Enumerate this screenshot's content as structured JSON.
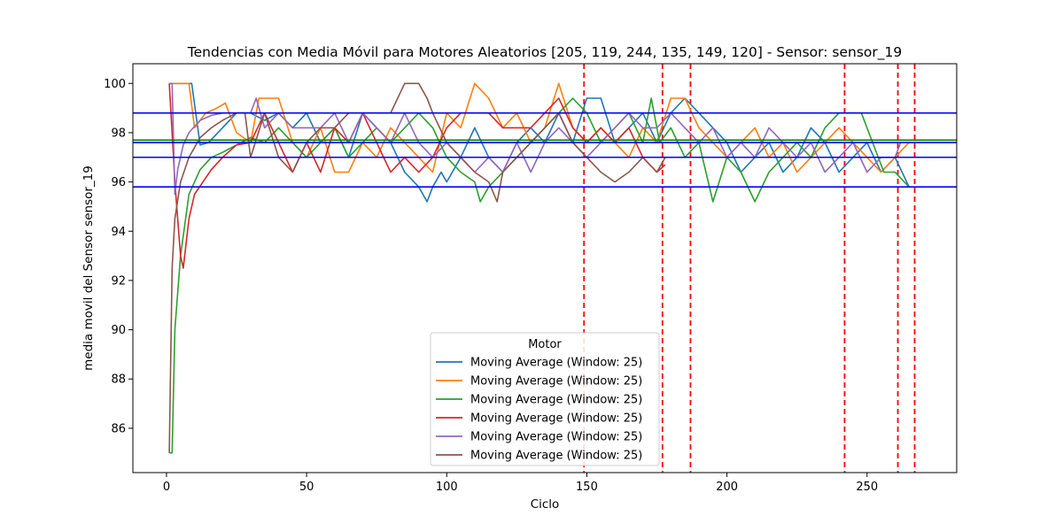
{
  "chart_data": {
    "type": "line",
    "title": "Tendencias con Media Móvil para Motores Aleatorios [205, 119, 244, 135, 149, 120] - Sensor: sensor_19",
    "xlabel": "Ciclo",
    "ylabel": "media movil del Sensor sensor_19",
    "xlim": [
      -12,
      282
    ],
    "ylim": [
      84.2,
      100.8
    ],
    "xticks": [
      0,
      50,
      100,
      150,
      200,
      250
    ],
    "yticks": [
      86,
      88,
      90,
      92,
      94,
      96,
      98,
      100
    ],
    "grid": false,
    "legend": {
      "title": "Motor",
      "placement": "lower-center",
      "entries": [
        "Moving Average (Window: 25)",
        "Moving Average (Window: 25)",
        "Moving Average (Window: 25)",
        "Moving Average (Window: 25)",
        "Moving Average (Window: 25)",
        "Moving Average (Window: 25)"
      ]
    },
    "series": [
      {
        "color": "#1f77b4",
        "x": [
          1,
          2,
          5,
          9,
          12,
          15,
          20,
          25,
          30,
          35,
          40,
          45,
          50,
          55,
          60,
          65,
          70,
          75,
          80,
          85,
          90,
          93,
          95,
          98,
          100,
          105,
          110,
          115,
          120,
          125,
          130,
          135,
          140,
          145,
          150,
          155,
          160,
          165,
          170,
          175,
          180,
          185,
          190,
          195,
          200,
          205,
          210,
          215,
          220,
          225,
          230,
          235,
          240,
          245,
          250,
          255,
          260,
          265
        ],
        "y": [
          100,
          100,
          100,
          100,
          97.5,
          97.6,
          98.2,
          98.8,
          98.8,
          98.5,
          98.8,
          98.2,
          98.8,
          97.6,
          98.2,
          97.0,
          98.8,
          98.2,
          97.6,
          96.4,
          95.8,
          95.2,
          95.8,
          96.4,
          96.0,
          97.0,
          98.2,
          97.0,
          96.4,
          97.6,
          98.2,
          97.6,
          98.8,
          97.6,
          99.4,
          99.4,
          97.6,
          98.2,
          98.8,
          97.6,
          98.8,
          99.4,
          98.8,
          98.2,
          97.6,
          96.4,
          97.0,
          97.6,
          96.4,
          97.0,
          98.2,
          97.6,
          96.4,
          97.0,
          97.6,
          96.4,
          97.0,
          95.8
        ]
      },
      {
        "color": "#ff7f0e",
        "x": [
          1,
          3,
          6,
          8,
          10,
          14,
          18,
          21,
          25,
          30,
          33,
          36,
          40,
          45,
          50,
          55,
          60,
          65,
          70,
          75,
          80,
          85,
          90,
          95,
          100,
          105,
          110,
          115,
          120,
          125,
          130,
          135,
          140,
          145,
          150,
          155,
          160,
          165,
          170,
          175,
          180,
          185,
          190,
          195,
          200,
          205,
          210,
          215,
          220,
          225,
          230,
          235,
          240,
          245,
          250,
          255,
          260,
          265
        ],
        "y": [
          100,
          100,
          100,
          100,
          98.2,
          98.8,
          99.0,
          99.2,
          98.0,
          97.6,
          99.4,
          99.4,
          99.4,
          97.6,
          97.0,
          98.2,
          96.4,
          96.4,
          97.6,
          97.0,
          98.2,
          97.6,
          97.0,
          96.4,
          98.8,
          98.2,
          100,
          99.4,
          98.2,
          98.8,
          97.6,
          98.2,
          100,
          98.2,
          97.6,
          98.2,
          97.6,
          97.0,
          98.2,
          97.6,
          99.4,
          99.4,
          98.2,
          97.6,
          97.0,
          97.6,
          98.2,
          97.0,
          97.6,
          96.4,
          97.0,
          97.6,
          98.2,
          97.6,
          97.0,
          96.4,
          97.0,
          97.6
        ]
      },
      {
        "color": "#2ca02c",
        "x": [
          1,
          2,
          3,
          5,
          8,
          12,
          16,
          20,
          25,
          30,
          35,
          40,
          45,
          50,
          55,
          60,
          65,
          70,
          75,
          80,
          85,
          90,
          95,
          100,
          105,
          110,
          112,
          115,
          120,
          125,
          130,
          135,
          140,
          145,
          150,
          155,
          160,
          165,
          170,
          173,
          176,
          180,
          185,
          190,
          195,
          200,
          205,
          210,
          215,
          220,
          225,
          230,
          235,
          240,
          245,
          248,
          252,
          256,
          260,
          265
        ],
        "y": [
          85,
          85,
          90,
          93,
          95.5,
          96.5,
          97.0,
          97.2,
          97.5,
          97.8,
          97.6,
          98.2,
          97.6,
          97.0,
          97.6,
          98.2,
          97.0,
          97.6,
          98.2,
          97.6,
          98.2,
          98.8,
          98.2,
          97.0,
          96.4,
          96.0,
          95.2,
          95.8,
          96.4,
          97.0,
          97.6,
          98.2,
          98.8,
          99.4,
          98.8,
          97.6,
          98.2,
          98.8,
          97.6,
          99.4,
          97.6,
          98.2,
          97.0,
          97.6,
          95.2,
          97.0,
          96.4,
          95.2,
          96.4,
          97.0,
          97.6,
          97.0,
          98.2,
          98.8,
          98.8,
          98.8,
          97.6,
          96.4,
          96.4,
          95.8
        ]
      },
      {
        "color": "#d62728",
        "x": [
          1,
          3,
          5,
          6,
          8,
          10,
          13,
          16,
          20,
          25,
          30,
          35,
          40,
          45,
          50,
          55,
          60,
          65,
          70,
          75,
          80,
          85,
          90,
          95,
          100,
          105,
          110,
          115,
          120,
          125,
          130,
          135,
          140,
          145,
          150,
          155,
          160,
          165,
          170,
          175,
          178
        ],
        "y": [
          100,
          96.0,
          93.0,
          92.5,
          94.5,
          95.5,
          96.0,
          96.5,
          97.0,
          97.5,
          97.6,
          98.8,
          97.6,
          96.4,
          97.6,
          96.4,
          98.2,
          97.6,
          98.8,
          97.6,
          96.4,
          97.0,
          96.4,
          97.0,
          98.2,
          98.8,
          98.8,
          98.8,
          98.2,
          98.2,
          98.2,
          98.8,
          99.4,
          98.2,
          97.6,
          98.2,
          97.6,
          98.2,
          97.0,
          96.4,
          96.7
        ]
      },
      {
        "color": "#9467bd",
        "x": [
          1,
          2,
          3,
          4,
          6,
          8,
          12,
          16,
          20,
          25,
          30,
          32,
          35,
          40,
          45,
          50,
          55,
          60,
          65,
          70,
          75,
          80,
          85,
          90,
          95,
          100,
          105,
          110,
          115,
          120,
          125,
          130,
          135,
          140,
          145,
          150,
          155,
          160,
          165,
          170,
          175,
          180,
          185,
          190,
          195,
          200,
          205,
          210,
          215,
          220,
          225,
          230,
          235,
          240,
          245,
          250,
          255,
          260,
          262
        ],
        "y": [
          100,
          100,
          95.5,
          96.5,
          97.5,
          98.0,
          98.5,
          98.7,
          98.8,
          98.8,
          98.8,
          99.4,
          98.2,
          98.8,
          98.2,
          98.2,
          98.2,
          98.8,
          97.6,
          98.8,
          98.2,
          97.6,
          98.8,
          97.6,
          97.0,
          97.6,
          97.0,
          96.4,
          97.0,
          96.4,
          97.6,
          96.4,
          97.6,
          98.2,
          97.6,
          97.0,
          97.6,
          98.2,
          98.8,
          98.2,
          98.2,
          98.8,
          98.2,
          97.6,
          98.2,
          97.0,
          97.6,
          97.0,
          98.2,
          97.6,
          97.0,
          97.6,
          96.4,
          97.0,
          97.6,
          96.4,
          97.0,
          97.0,
          97.6
        ]
      },
      {
        "color": "#8c564b",
        "x": [
          1,
          2,
          3,
          5,
          8,
          12,
          16,
          20,
          25,
          28,
          30,
          35,
          40,
          45,
          50,
          55,
          60,
          65,
          70,
          75,
          80,
          85,
          90,
          93,
          95,
          100,
          105,
          110,
          115,
          118,
          120,
          125,
          130,
          135,
          140,
          145,
          150,
          155,
          160,
          165,
          170,
          175,
          178
        ],
        "y": [
          85,
          92.5,
          94.5,
          96.0,
          97.0,
          97.8,
          98.2,
          98.5,
          98.8,
          98.8,
          97.0,
          98.8,
          97.0,
          96.4,
          97.6,
          98.2,
          98.2,
          98.8,
          98.8,
          98.8,
          98.8,
          100,
          100,
          99.4,
          98.8,
          97.6,
          97.0,
          96.4,
          96.0,
          95.2,
          96.4,
          97.0,
          97.6,
          98.2,
          98.8,
          97.6,
          97.0,
          96.4,
          96.0,
          96.4,
          97.0,
          96.4,
          97.0
        ]
      }
    ],
    "hlines": [
      {
        "y": 98.8,
        "color": "#0000ff"
      },
      {
        "y": 97.7,
        "color": "#008000"
      },
      {
        "y": 97.6,
        "color": "#0000ff"
      },
      {
        "y": 97.0,
        "color": "#0000ff"
      },
      {
        "y": 95.8,
        "color": "#0000ff"
      }
    ],
    "vlines": [
      {
        "x": 149,
        "color": "#ff0000"
      },
      {
        "x": 177,
        "color": "#ff0000"
      },
      {
        "x": 187,
        "color": "#ff0000"
      },
      {
        "x": 242,
        "color": "#ff0000"
      },
      {
        "x": 261,
        "color": "#ff0000"
      },
      {
        "x": 267,
        "color": "#ff0000"
      }
    ]
  }
}
